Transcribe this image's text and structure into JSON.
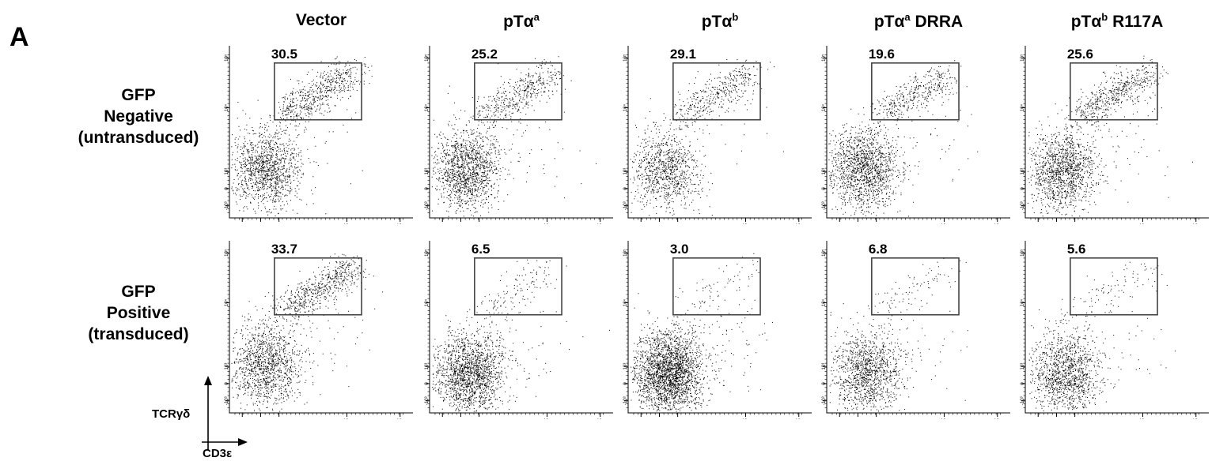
{
  "figure": {
    "panel_label": "A",
    "axis_key": {
      "y_label": "TCRγδ",
      "x_label": "CD3ε"
    },
    "columns": [
      {
        "title_main": "Vector",
        "title_sup": "",
        "title_suffix": ""
      },
      {
        "title_main": "pTα",
        "title_sup": "a",
        "title_suffix": ""
      },
      {
        "title_main": "pTα",
        "title_sup": "b",
        "title_suffix": ""
      },
      {
        "title_main": "pTα",
        "title_sup": "a",
        "title_suffix": " DRRA"
      },
      {
        "title_main": "pTα",
        "title_sup": "b",
        "title_suffix": " R117A"
      }
    ],
    "rows": [
      {
        "lines": [
          "GFP",
          "Negative",
          "(untransduced)"
        ]
      },
      {
        "lines": [
          "GFP",
          "Positive",
          "(transduced)"
        ]
      }
    ]
  },
  "chart_data": {
    "type": "scatter",
    "description_axes": {
      "x_ticks": [
        "-10³",
        "0",
        "10³",
        "10⁴",
        "10⁵"
      ],
      "y_ticks": [
        "-10³",
        "0",
        "10³",
        "10⁴",
        "10⁵"
      ],
      "scale": "biexponential"
    },
    "gate": {
      "x_range": [
        "10²",
        "10⁴"
      ],
      "y_range": [
        "10³",
        "10⁵"
      ]
    },
    "panels": [
      {
        "row": 0,
        "col": 0,
        "gate_percent": "30.5",
        "density": "high"
      },
      {
        "row": 0,
        "col": 1,
        "gate_percent": "25.2",
        "density": "high"
      },
      {
        "row": 0,
        "col": 2,
        "gate_percent": "29.1",
        "density": "medium"
      },
      {
        "row": 0,
        "col": 3,
        "gate_percent": "19.6",
        "density": "high"
      },
      {
        "row": 0,
        "col": 4,
        "gate_percent": "25.6",
        "density": "high"
      },
      {
        "row": 1,
        "col": 0,
        "gate_percent": "33.7",
        "density": "high"
      },
      {
        "row": 1,
        "col": 1,
        "gate_percent": "6.5",
        "density": "high"
      },
      {
        "row": 1,
        "col": 2,
        "gate_percent": "3.0",
        "density": "very-high"
      },
      {
        "row": 1,
        "col": 3,
        "gate_percent": "6.8",
        "density": "medium"
      },
      {
        "row": 1,
        "col": 4,
        "gate_percent": "5.6",
        "density": "medium"
      }
    ]
  }
}
